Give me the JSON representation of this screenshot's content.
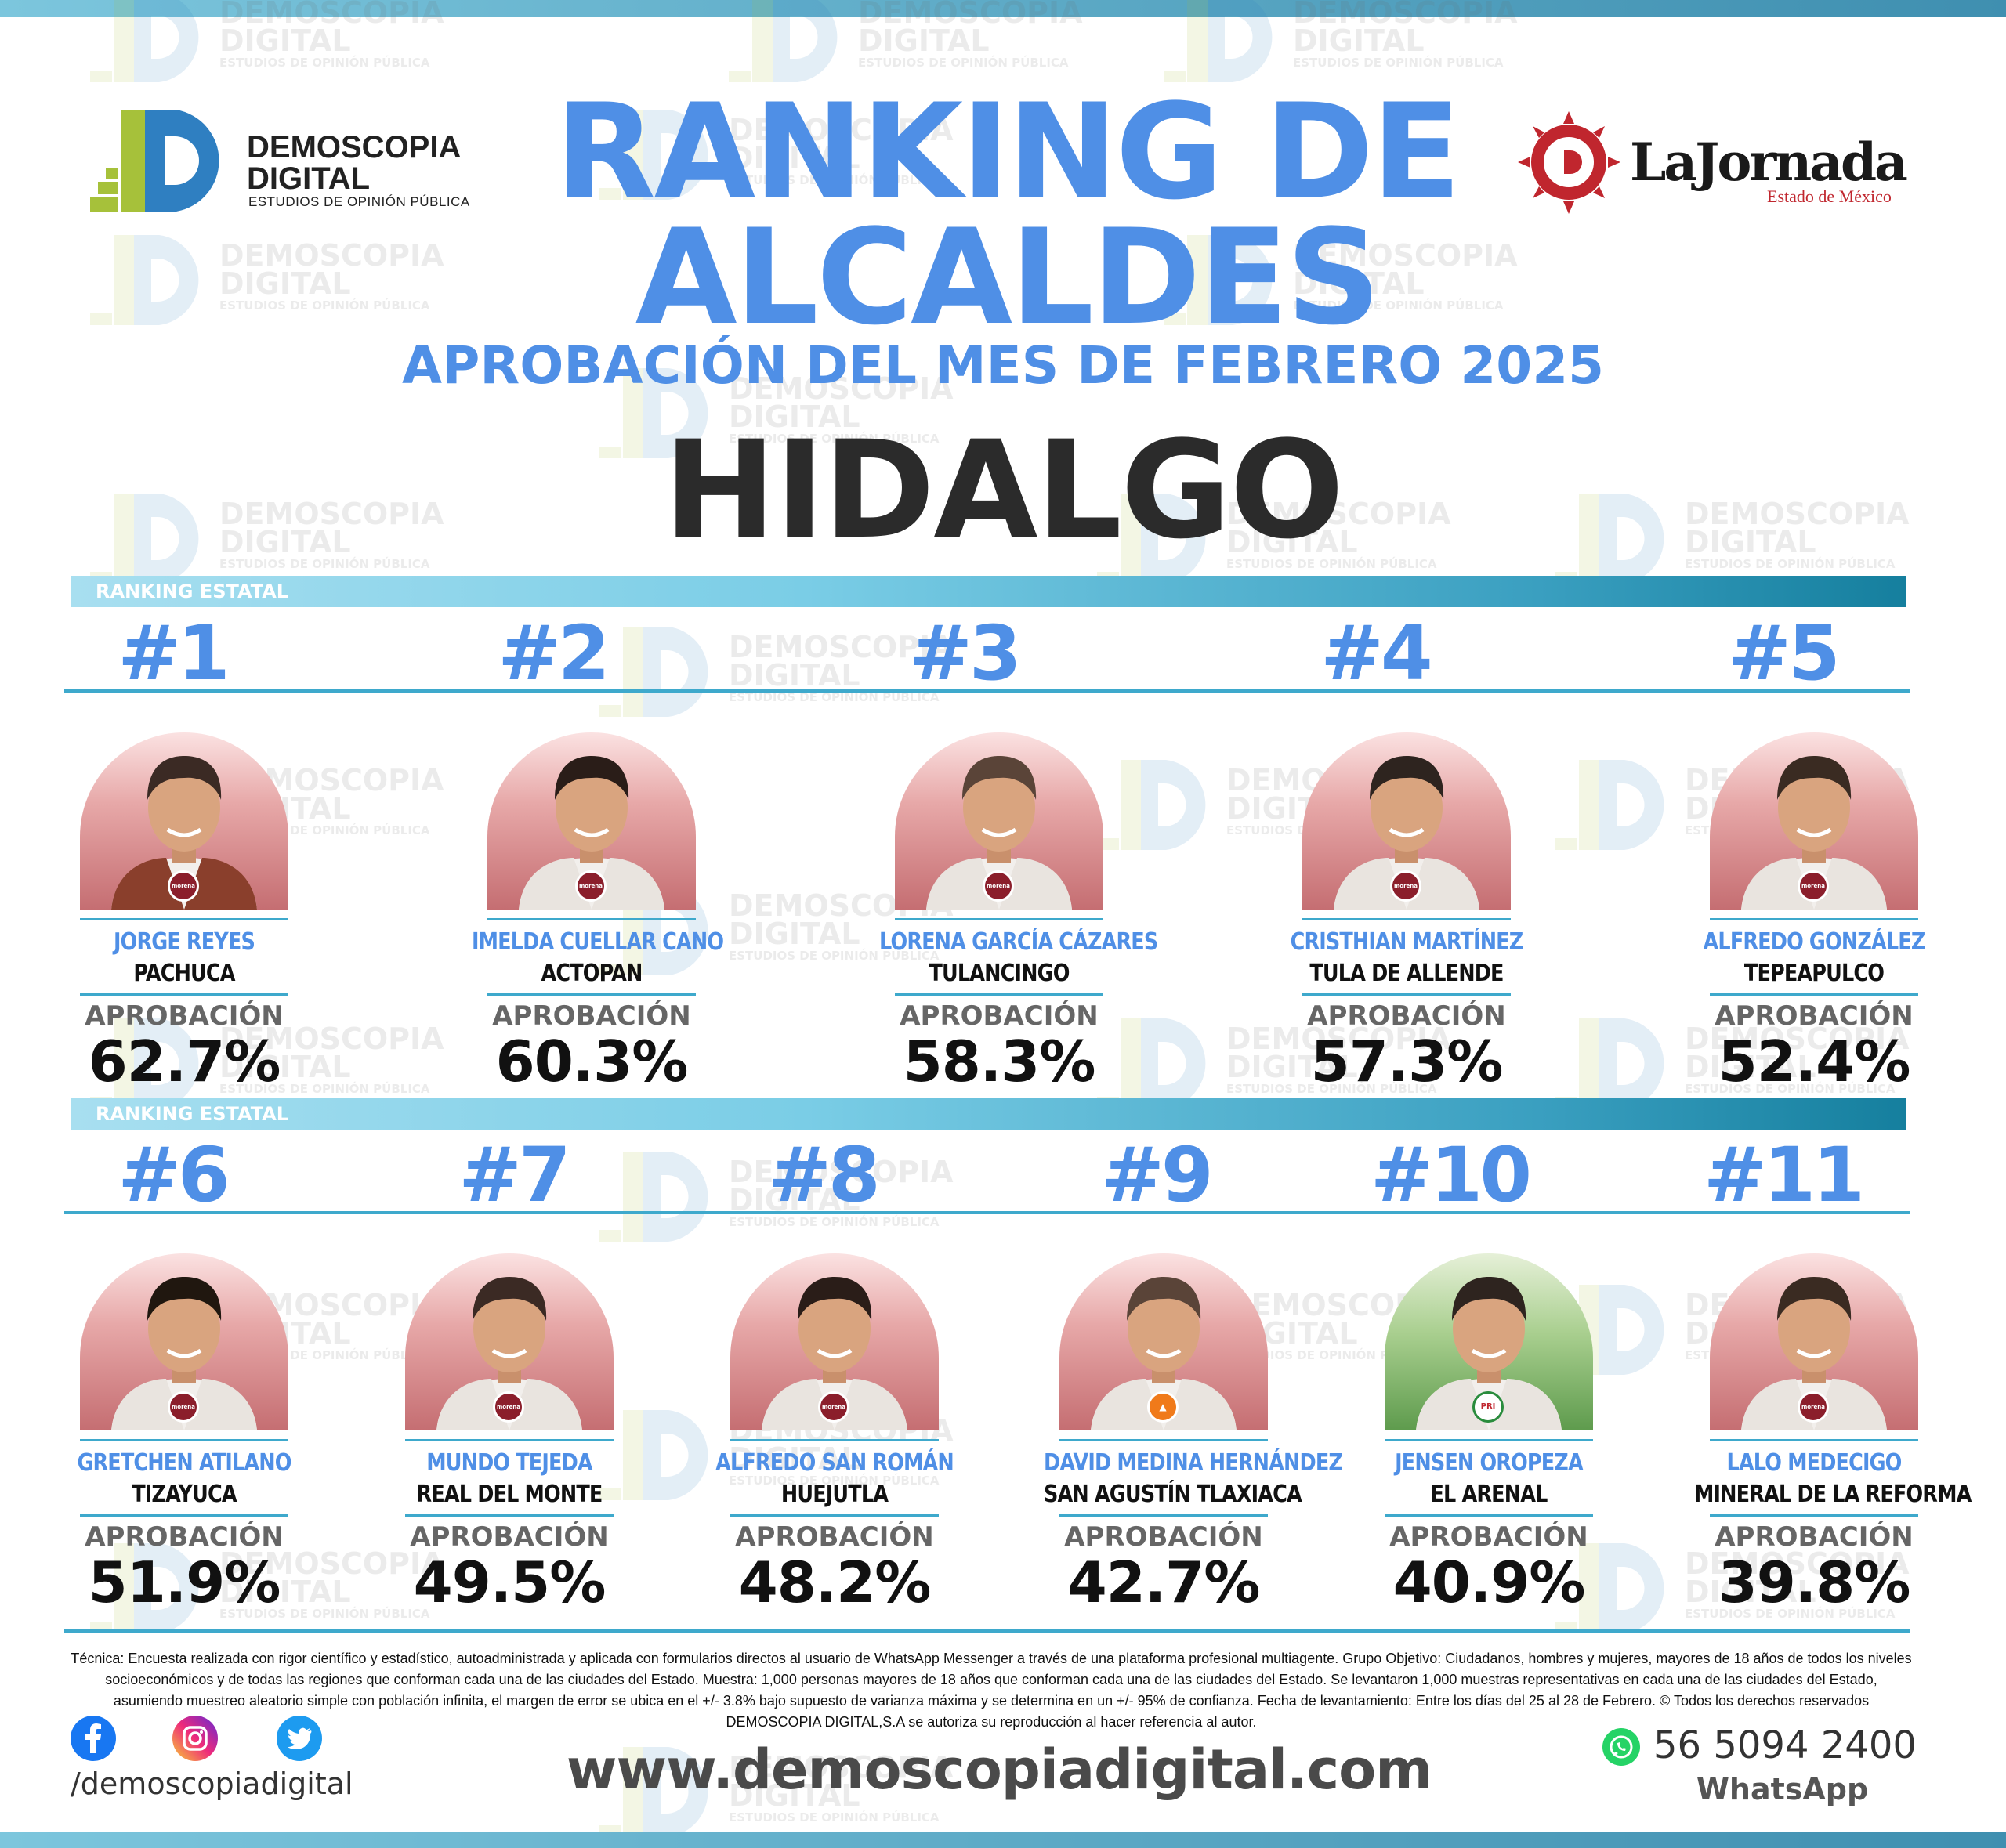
{
  "header": {
    "brand_name": "DEMOSCOPIA\nDIGITAL",
    "brand_sub": "ESTUDIOS DE OPINIÓN PÚBLICA",
    "title_line1": "RANKING DE",
    "title_line2": "ALCALDES",
    "subtitle": "APROBACIÓN DEL MES DE FEBRERO 2025",
    "state": "HIDALGO",
    "partner_name": "LaJornada",
    "partner_sub": "Estado de México"
  },
  "watermark": {
    "text": "DEMOSCOPIA\nDIGITAL",
    "sub": "ESTUDIOS DE OPINIÓN PÚBLICA"
  },
  "section_label": "RANKING ESTATAL",
  "approval_label": "APROBACIÓN",
  "ranking": [
    {
      "rank": "#1",
      "name": "JORGE REYES",
      "city": "PACHUCA",
      "approval": "62.7%",
      "party": "morena"
    },
    {
      "rank": "#2",
      "name": "IMELDA CUELLAR CANO",
      "city": "ACTOPAN",
      "approval": "60.3%",
      "party": "morena"
    },
    {
      "rank": "#3",
      "name": "LORENA GARCÍA CÁZARES",
      "city": "TULANCINGO",
      "approval": "58.3%",
      "party": "morena"
    },
    {
      "rank": "#4",
      "name": "CRISTHIAN MARTÍNEZ",
      "city": "TULA DE ALLENDE",
      "approval": "57.3%",
      "party": "morena"
    },
    {
      "rank": "#5",
      "name": "ALFREDO GONZÁLEZ",
      "city": "TEPEAPULCO",
      "approval": "52.4%",
      "party": "morena"
    },
    {
      "rank": "#6",
      "name": "GRETCHEN ATILANO",
      "city": "TIZAYUCA",
      "approval": "51.9%",
      "party": "morena"
    },
    {
      "rank": "#7",
      "name": "MUNDO TEJEDA",
      "city": "REAL DEL MONTE",
      "approval": "49.5%",
      "party": "morena"
    },
    {
      "rank": "#8",
      "name": "ALFREDO SAN ROMÁN",
      "city": "HUEJUTLA",
      "approval": "48.2%",
      "party": "morena"
    },
    {
      "rank": "#9",
      "name": "DAVID MEDINA HERNÁNDEZ",
      "city": "SAN AGUSTÍN TLAXIACA",
      "approval": "42.7%",
      "party": "MC"
    },
    {
      "rank": "#10",
      "name": "JENSEN OROPEZA",
      "city": "EL ARENAL",
      "approval": "40.9%",
      "party": "PRI"
    },
    {
      "rank": "#11",
      "name": "LALO MEDECIGO",
      "city": "MINERAL DE LA REFORMA",
      "approval": "39.8%",
      "party": "morena"
    }
  ],
  "footer": {
    "methodology": "Técnica: Encuesta realizada con rigor científico y estadístico, autoadministrada y aplicada con formularios directos al usuario de WhatsApp Messenger a través de una plataforma profesional multiagente. Grupo Objetivo: Ciudadanos, hombres y mujeres, mayores de 18 años de todos los niveles socioeconómicos y de todas las regiones que conforman cada una de las ciudades del Estado. Muestra: 1,000 personas mayores de 18 años que conforman cada una de las ciudades del Estado. Se levantaron 1,000 muestras representativas en cada una de las ciudades del Estado, asumiendo muestreo aleatorio simple con población infinita, el margen de error se ubica en el +/- 3.8% bajo supuesto de varianza máxima y se determina en un +/- 95% de confianza. Fecha de levantamiento: Entre los días del 25 al 28 de Febrero. © Todos los derechos reservados DEMOSCOPIA DIGITAL,S.A se autoriza su reproducción al hacer referencia al autor.",
    "social_handle": "/demoscopiadigital",
    "website": "www.demoscopiadigital.com",
    "phone": "56 5094 2400",
    "whatsapp_label": "WhatsApp"
  },
  "colors": {
    "title_blue": "#4f8fe6",
    "band_start": "#a8dff0",
    "band_end": "#157f9e",
    "morena": "#8b1e2b",
    "mc": "#f07a1a",
    "pri": "#2a8c3d"
  },
  "icons": {
    "social": [
      "facebook-icon",
      "instagram-icon",
      "twitter-icon"
    ],
    "contact": "whatsapp-icon"
  }
}
